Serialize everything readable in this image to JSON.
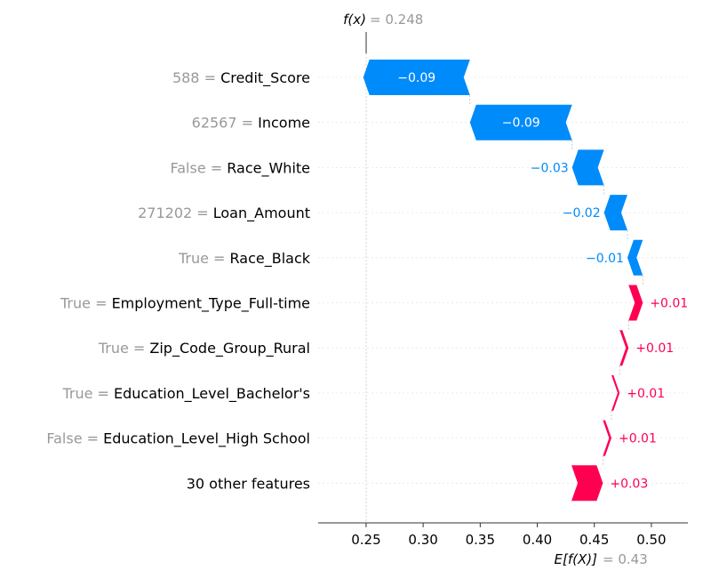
{
  "chart_data": {
    "type": "waterfall",
    "fx_label": "f(x)",
    "fx_value": "= 0.248",
    "base_label": "E[f(X)]",
    "base_value": "= 0.43",
    "base": 0.43,
    "xlim": [
      0.208,
      0.532
    ],
    "xticks": [
      "0.25",
      "0.30",
      "0.35",
      "0.40",
      "0.45",
      "0.50"
    ],
    "colors": {
      "negative": "#008bfb",
      "positive": "#ff0051"
    },
    "features": [
      {
        "value": "588",
        "name": "Credit_Score",
        "contribution": -0.0935,
        "label": "−0.09"
      },
      {
        "value": "62567",
        "name": "Income",
        "contribution": -0.0895,
        "label": "−0.09"
      },
      {
        "value": "False",
        "name": "Race_White",
        "contribution": -0.028,
        "label": "−0.03"
      },
      {
        "value": "271202",
        "name": "Loan_Amount",
        "contribution": -0.0205,
        "label": "−0.02"
      },
      {
        "value": "True",
        "name": "Race_Black",
        "contribution": -0.0135,
        "label": "−0.01"
      },
      {
        "value": "True",
        "name": "Employment_Type_Full-time",
        "contribution": 0.0125,
        "label": "+0.01"
      },
      {
        "value": "True",
        "name": "Zip_Code_Group_Rural",
        "contribution": 0.0078,
        "label": "+0.01"
      },
      {
        "value": "True",
        "name": "Education_Level_Bachelor's",
        "contribution": 0.0072,
        "label": "+0.01"
      },
      {
        "value": "False",
        "name": "Education_Level_High School",
        "contribution": 0.0075,
        "label": "+0.01"
      },
      {
        "value": "",
        "name": "30 other features",
        "contribution": 0.0275,
        "label": "+0.03"
      }
    ]
  }
}
